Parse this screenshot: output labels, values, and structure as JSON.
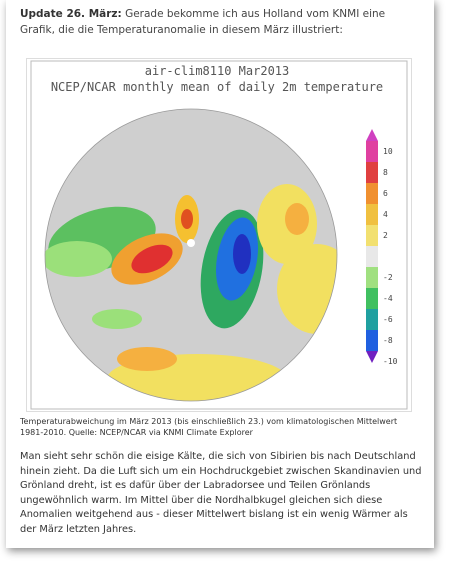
{
  "intro": {
    "label": "Update 26. März:",
    "text": "Gerade bekomme ich aus Holland vom KNMI eine Grafik, die die Temperaturanomalie in diesem März illustriert:"
  },
  "figure": {
    "title": "air-clim8110 Mar2013",
    "subtitle": "NCEP/NCAR monthly mean of daily 2m temperature",
    "colorbar_ticks": [
      10,
      8,
      6,
      4,
      2,
      -2,
      -4,
      -6,
      -8,
      -10
    ],
    "caption": "Temperaturabweichung im März 2013 (bis einschließlich 23.) vom klimatologischen Mittelwert 1981-2010. Quelle: NCEP/NCAR via KNMI Climate Explorer"
  },
  "body": "Man sieht sehr schön die eisige Kälte, die sich von Sibirien bis nach Deutschland hinein zieht. Da die Luft sich um ein Hochdruckgebiet zwischen Skandinavien und Grönland dreht, ist es dafür über der Labradorsee und Teilen Grönlands ungewöhnlich warm. Im Mittel über die Nordhalbkugel gleichen sich diese Anomalien weitgehend aus - dieser Mittelwert bislang ist ein wenig Wärmer als der März letzten Jahres."
}
